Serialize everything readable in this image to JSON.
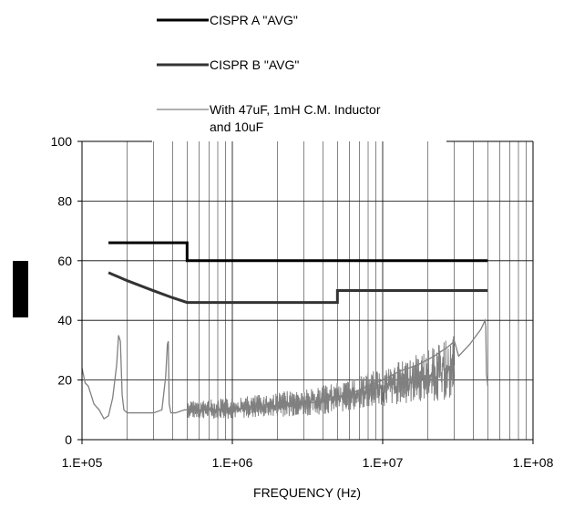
{
  "chart_data": {
    "type": "line",
    "title": "",
    "xlabel": "FREQUENCY (Hz)",
    "ylabel": "",
    "x_scale": "log",
    "xlim": [
      100000,
      100000000
    ],
    "ylim": [
      0,
      100
    ],
    "x_ticks": [
      {
        "value": 100000,
        "label": "1.E+05"
      },
      {
        "value": 1000000,
        "label": "1.E+06"
      },
      {
        "value": 10000000,
        "label": "1.E+07"
      },
      {
        "value": 100000000,
        "label": "1.E+08"
      }
    ],
    "y_ticks": [
      {
        "value": 0,
        "label": "0"
      },
      {
        "value": 20,
        "label": "20"
      },
      {
        "value": 40,
        "label": "40"
      },
      {
        "value": 60,
        "label": "60"
      },
      {
        "value": 80,
        "label": "80"
      },
      {
        "value": 100,
        "label": "100"
      }
    ],
    "grid": {
      "horizontal": true,
      "vertical_log_minor": true
    },
    "legend_position": "top",
    "series": [
      {
        "name": "CISPR A \"AVG\"",
        "legend_lines": [
          "CISPR A \"AVG\""
        ],
        "color": "#000000",
        "style": "thick",
        "x": [
          150000,
          500000,
          500000,
          50000000
        ],
        "y": [
          66,
          66,
          60,
          60
        ]
      },
      {
        "name": "CISPR B \"AVG\"",
        "legend_lines": [
          "CISPR B \"AVG\""
        ],
        "color": "#333333",
        "style": "thick",
        "x": [
          150000,
          200000,
          300000,
          400000,
          500000,
          5000000,
          5000000,
          50000000
        ],
        "y": [
          56,
          53.3,
          49.9,
          47.6,
          46,
          46,
          50,
          50
        ]
      },
      {
        "name": "With 47uF, 1mH C.M. Inductor and 10uF",
        "legend_lines": [
          "With 47uF, 1mH C.M. Inductor",
          "and 10uF"
        ],
        "color": "#808080",
        "style": "thin",
        "x": [
          100000,
          105000,
          110000,
          115000,
          120000,
          130000,
          140000,
          150000,
          160000,
          170000,
          175000,
          180000,
          185000,
          190000,
          200000,
          230000,
          260000,
          300000,
          340000,
          360000,
          370000,
          375000,
          380000,
          390000,
          420000,
          480000,
          550000,
          650000,
          800000,
          1000000,
          1300000,
          1700000,
          2200000,
          3000000,
          4000000,
          5000000,
          6500000,
          8000000,
          10000000,
          13000000,
          17000000,
          22000000,
          27000000,
          30000000,
          32000000,
          38000000,
          45000000,
          48000000,
          48500000,
          49000000,
          50000000
        ],
        "y": [
          24,
          19,
          18,
          15,
          12,
          10,
          7,
          8,
          14,
          25,
          35,
          33,
          15,
          10,
          9,
          9,
          9,
          9,
          10,
          21,
          32,
          33,
          12,
          9,
          9,
          10,
          10,
          10,
          10,
          10,
          11,
          11,
          12,
          12,
          13,
          14,
          16,
          18,
          20,
          23,
          25,
          28,
          31,
          33,
          28,
          32,
          37,
          40,
          38,
          22,
          18
        ],
        "noise_band": {
          "x": [
            500000,
            1000000,
            3000000,
            5000000,
            10000000,
            20000000,
            30000000
          ],
          "y_low": [
            7,
            7,
            8,
            9,
            11,
            13,
            13
          ],
          "y_high": [
            13,
            14,
            17,
            19,
            24,
            30,
            35
          ]
        }
      }
    ]
  }
}
